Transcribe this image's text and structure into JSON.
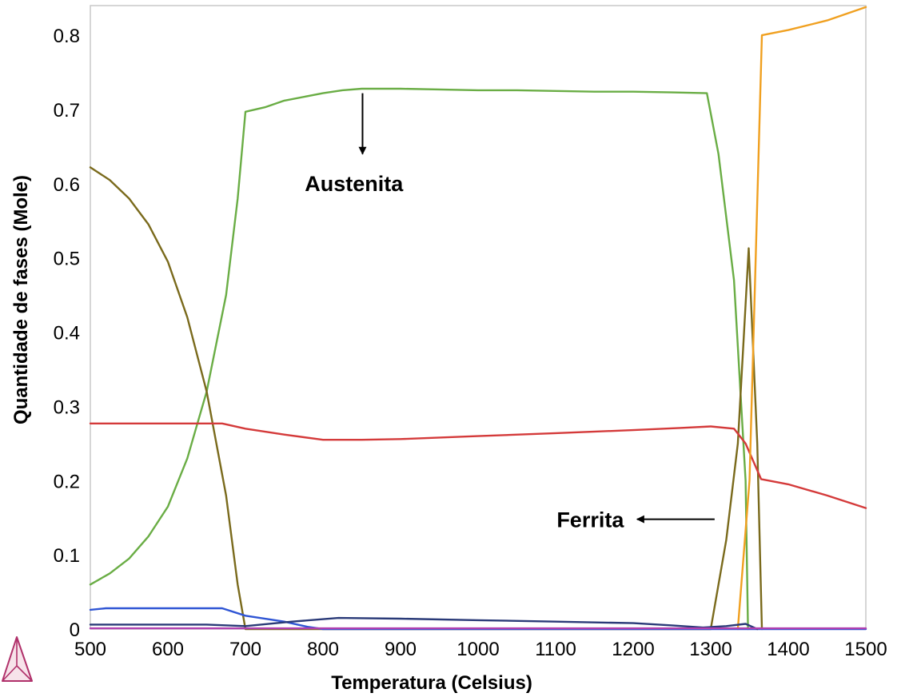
{
  "chart_data": {
    "type": "line",
    "title": "",
    "xlabel": "Temperatura (Celsius)",
    "ylabel": "Quantidade de fases (Mole)",
    "xlim": [
      500,
      1500
    ],
    "ylim": [
      0,
      0.84
    ],
    "x_ticks": [
      "500",
      "600",
      "700",
      "800",
      "900",
      "1000",
      "1100",
      "1200",
      "1300",
      "1400",
      "1500"
    ],
    "y_ticks": [
      "0",
      "0.1",
      "0.2",
      "0.3",
      "0.4",
      "0.5",
      "0.6",
      "0.7",
      "0.8"
    ],
    "grid": false,
    "legend": "none",
    "series": [
      {
        "color": "#6aad45",
        "x": [
          500,
          525,
          550,
          575,
          600,
          625,
          650,
          675,
          690,
          700,
          725,
          750,
          800,
          825,
          850,
          900,
          950,
          1000,
          1050,
          1100,
          1150,
          1200,
          1250,
          1295,
          1310,
          1330,
          1345,
          1348
        ],
        "y": [
          0.06,
          0.075,
          0.095,
          0.125,
          0.165,
          0.23,
          0.32,
          0.45,
          0.58,
          0.697,
          0.703,
          0.712,
          0.722,
          0.726,
          0.728,
          0.728,
          0.727,
          0.726,
          0.726,
          0.725,
          0.724,
          0.724,
          0.723,
          0.722,
          0.64,
          0.47,
          0.2,
          0.0
        ]
      },
      {
        "color": "#7a6a1c",
        "x": [
          500,
          525,
          550,
          575,
          600,
          625,
          650,
          675,
          690,
          700,
          1300,
          1320,
          1335,
          1349,
          1360,
          1366
        ],
        "y": [
          0.622,
          0.605,
          0.58,
          0.545,
          0.495,
          0.42,
          0.32,
          0.18,
          0.06,
          0.0,
          0.0,
          0.12,
          0.25,
          0.513,
          0.25,
          0.0
        ]
      },
      {
        "color": "#d43a3a",
        "x": [
          500,
          550,
          600,
          650,
          670,
          700,
          750,
          800,
          850,
          900,
          1000,
          1100,
          1200,
          1260,
          1300,
          1330,
          1345,
          1365,
          1400,
          1450,
          1500
        ],
        "y": [
          0.277,
          0.277,
          0.277,
          0.277,
          0.277,
          0.27,
          0.262,
          0.255,
          0.255,
          0.256,
          0.26,
          0.264,
          0.268,
          0.271,
          0.273,
          0.27,
          0.25,
          0.202,
          0.195,
          0.18,
          0.163
        ]
      },
      {
        "color": "#f0a020",
        "x": [
          1335,
          1350,
          1366,
          1400,
          1450,
          1500
        ],
        "y": [
          0.0,
          0.2,
          0.8,
          0.807,
          0.82,
          0.838
        ]
      },
      {
        "color": "#2f55d4",
        "x": [
          500,
          520,
          670,
          700,
          750,
          780,
          800,
          1500
        ],
        "y": [
          0.026,
          0.028,
          0.028,
          0.018,
          0.01,
          0.003,
          0.0,
          0.0
        ]
      },
      {
        "color": "#2a3a78",
        "x": [
          500,
          650,
          700,
          760,
          820,
          900,
          1000,
          1100,
          1200,
          1250,
          1290,
          1320,
          1345,
          1360
        ],
        "y": [
          0.006,
          0.006,
          0.004,
          0.01,
          0.015,
          0.014,
          0.012,
          0.01,
          0.008,
          0.005,
          0.002,
          0.004,
          0.007,
          0.0
        ]
      },
      {
        "color": "#b040b0",
        "x": [
          500,
          1500
        ],
        "y": [
          0.001,
          0.001
        ]
      }
    ],
    "annotations": [
      {
        "text": "Austenita",
        "arrow_from": [
          851,
          0.722
        ],
        "arrow_to": [
          851,
          0.64
        ],
        "label_at": [
          840,
          0.59
        ]
      },
      {
        "text": "Ferrita",
        "arrow_from": [
          1305,
          0.148
        ],
        "arrow_to": [
          1205,
          0.148
        ],
        "label_at": [
          1188,
          0.148
        ]
      }
    ]
  },
  "logo": {
    "icon": "thermo-calc-triangle-logo",
    "color": "#b0306a"
  }
}
